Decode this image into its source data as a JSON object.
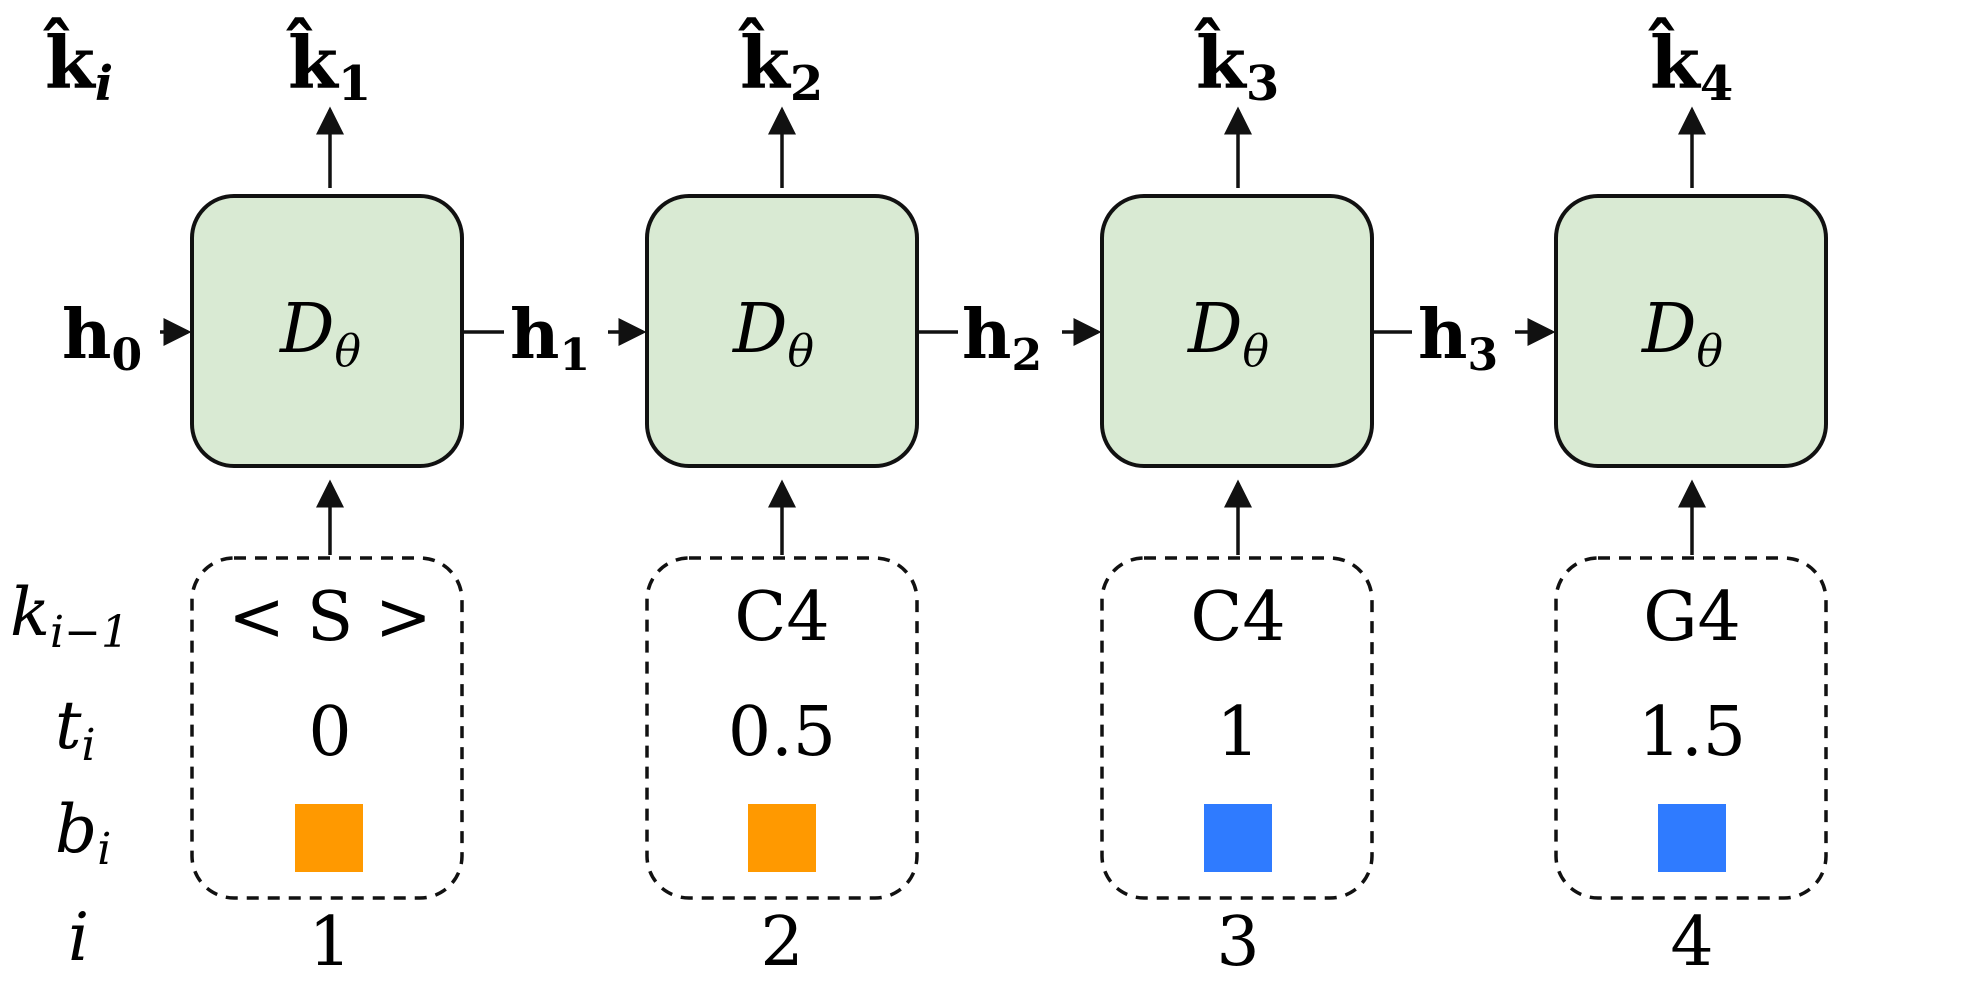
{
  "row_labels": {
    "output": "k̂",
    "output_sub": "i",
    "key": "k",
    "key_sub": "i−1",
    "time": "t",
    "time_sub": "i",
    "beat": "b",
    "beat_sub": "i",
    "index": "i"
  },
  "decoder": {
    "symbol": "D",
    "symbol_sub": "θ"
  },
  "hidden_states": [
    {
      "symbol": "h",
      "sub": "0"
    },
    {
      "symbol": "h",
      "sub": "1"
    },
    {
      "symbol": "h",
      "sub": "2"
    },
    {
      "symbol": "h",
      "sub": "3"
    }
  ],
  "steps": [
    {
      "output_symbol": "k̂",
      "output_sub": "1",
      "key": "< S >",
      "time": "0",
      "beat_color": "#ff9900",
      "index": "1"
    },
    {
      "output_symbol": "k̂",
      "output_sub": "2",
      "key": "C4",
      "time": "0.5",
      "beat_color": "#ff9900",
      "index": "2"
    },
    {
      "output_symbol": "k̂",
      "output_sub": "3",
      "key": "C4",
      "time": "1",
      "beat_color": "#2f7bff",
      "index": "3"
    },
    {
      "output_symbol": "k̂",
      "output_sub": "4",
      "key": "G4",
      "time": "1.5",
      "beat_color": "#2f7bff",
      "index": "4"
    }
  ],
  "colors": {
    "decoder_fill": "#d9ead3",
    "stroke": "#111111"
  }
}
